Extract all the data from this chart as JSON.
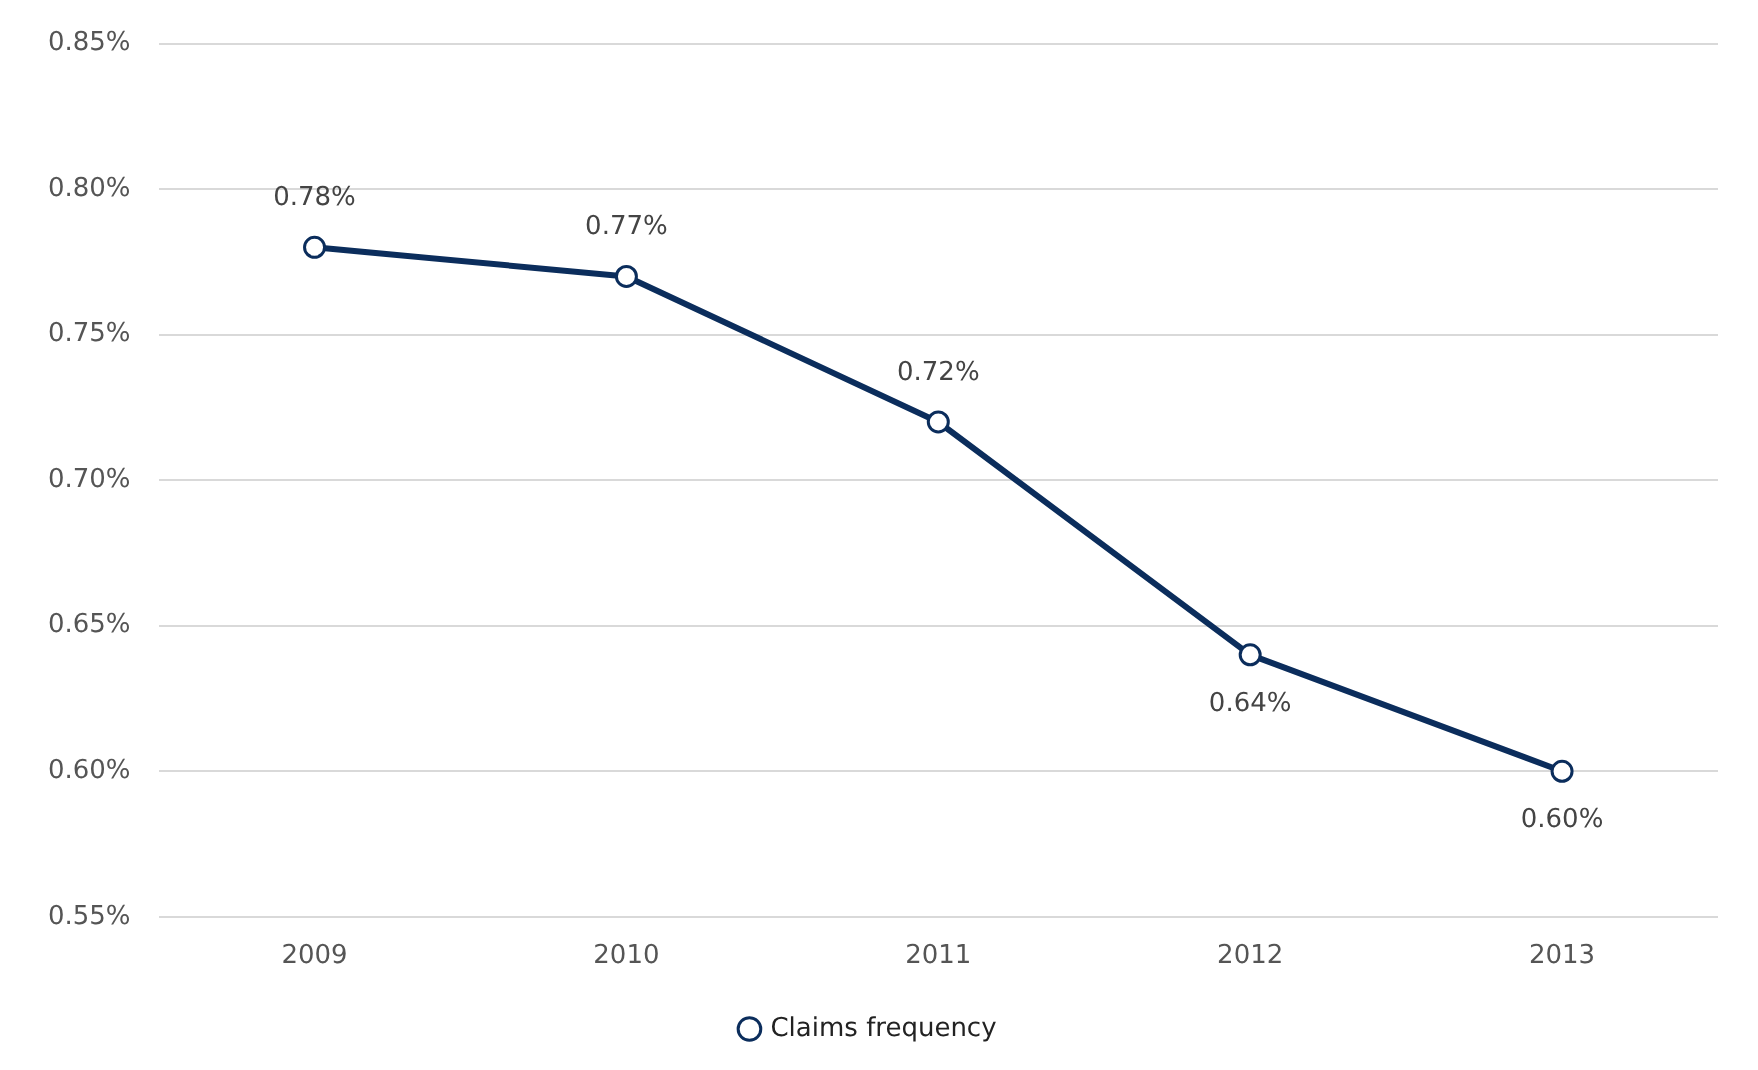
{
  "chart_data": {
    "type": "line",
    "categories": [
      "2009",
      "2010",
      "2011",
      "2012",
      "2013"
    ],
    "series": [
      {
        "name": "Claims frequency",
        "color": "#0b2d5c",
        "values": [
          0.78,
          0.77,
          0.72,
          0.64,
          0.6
        ]
      }
    ],
    "ylim": [
      0.55,
      0.85
    ],
    "yticks": [
      {
        "value": 0.55,
        "label": "0.55%"
      },
      {
        "value": 0.6,
        "label": "0.60%"
      },
      {
        "value": 0.65,
        "label": "0.65%"
      },
      {
        "value": 0.7,
        "label": "0.70%"
      },
      {
        "value": 0.75,
        "label": "0.75%"
      },
      {
        "value": 0.8,
        "label": "0.80%"
      },
      {
        "value": 0.85,
        "label": "0.85%"
      }
    ],
    "value_labels": [
      "0.78%",
      "0.77%",
      "0.72%",
      "0.64%",
      "0.60%"
    ],
    "grid": "y",
    "legend": "bottom",
    "marker": "circle",
    "line_style": "solid"
  }
}
